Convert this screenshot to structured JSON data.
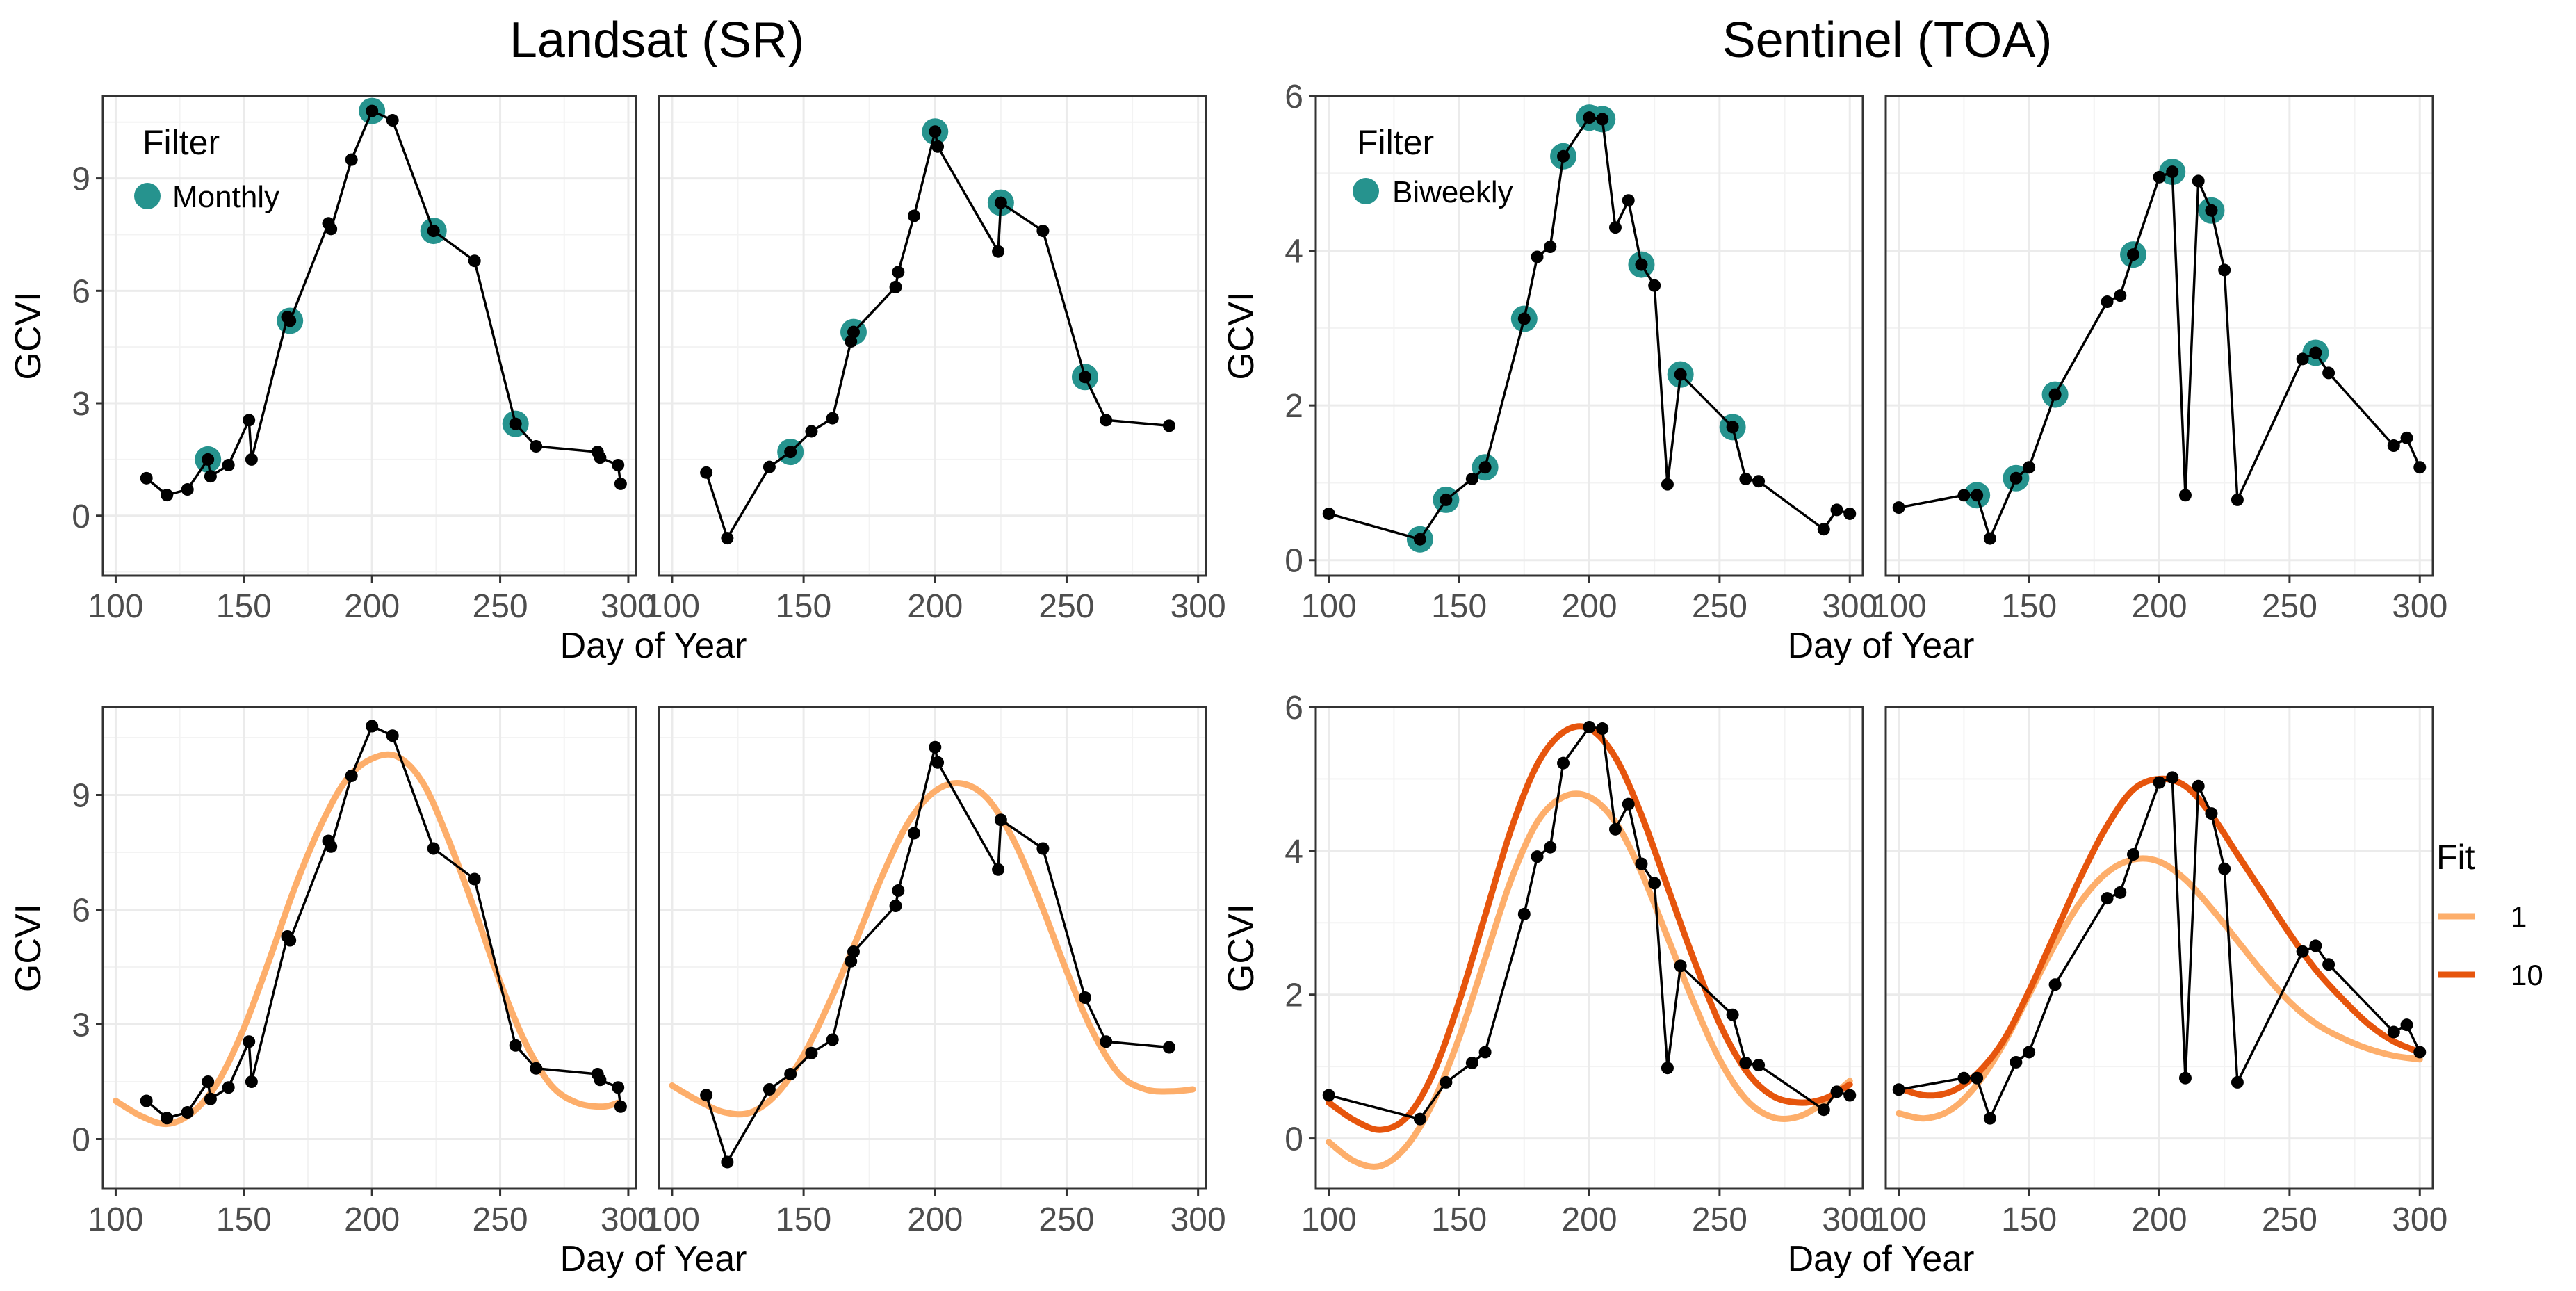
{
  "figure": {
    "group_titles": [
      "Landsat (SR)",
      "Sentinel (TOA)"
    ],
    "x_axis_label": "Day of Year",
    "y_axis_label": "GCVI"
  },
  "legends": {
    "filter_title": "Filter",
    "filter_landsat": "Monthly",
    "filter_sentinel": "Biweekly",
    "fit_title": "Fit",
    "fit_entries": [
      {
        "label": "1",
        "color": "#FDAE6B"
      },
      {
        "label": "10",
        "color": "#E6550D"
      }
    ]
  },
  "colors": {
    "series_line": "#000000",
    "filtered_point": "#26938E",
    "fit_1": "#FDAE6B",
    "fit_10": "#E6550D",
    "grid": "#EBEBEB"
  },
  "chart_data": [
    {
      "id": "landsat-a",
      "type": "line",
      "group": "Landsat (SR)",
      "xlim": [
        95,
        303
      ],
      "ylim": [
        -1.6,
        11.2
      ],
      "xticks": [
        100,
        150,
        200,
        250,
        300
      ],
      "yticks": [
        0,
        3,
        6,
        9
      ],
      "series": {
        "x": [
          112,
          120,
          128,
          136,
          137,
          144,
          152,
          153,
          167,
          168,
          183,
          184,
          192,
          200,
          208,
          224,
          240,
          256,
          264,
          288,
          289,
          296,
          297
        ],
        "y": [
          1.0,
          0.55,
          0.7,
          1.5,
          1.05,
          1.35,
          2.55,
          1.5,
          5.3,
          5.2,
          7.8,
          7.65,
          9.5,
          10.8,
          10.55,
          7.6,
          6.8,
          2.45,
          1.85,
          1.7,
          1.55,
          1.35,
          0.85
        ]
      },
      "filtered": {
        "x": [
          136,
          168,
          200,
          224,
          256
        ],
        "y": [
          1.5,
          5.2,
          10.8,
          7.6,
          2.45
        ]
      }
    },
    {
      "id": "landsat-b",
      "type": "line",
      "group": "Landsat (SR)",
      "xlim": [
        95,
        303
      ],
      "ylim": [
        -1.6,
        11.2
      ],
      "xticks": [
        100,
        150,
        200,
        250,
        300
      ],
      "yticks": [
        0,
        3,
        6,
        9
      ],
      "series": {
        "x": [
          113,
          121,
          137,
          145,
          153,
          161,
          168,
          169,
          185,
          186,
          192,
          200,
          201,
          224,
          225,
          241,
          257,
          265,
          289
        ],
        "y": [
          1.15,
          -0.6,
          1.3,
          1.7,
          2.25,
          2.6,
          4.65,
          4.9,
          6.1,
          6.5,
          8.0,
          10.25,
          9.85,
          7.05,
          8.35,
          7.6,
          3.7,
          2.55,
          2.4
        ]
      },
      "filtered": {
        "x": [
          145,
          169,
          200,
          225,
          257
        ],
        "y": [
          1.7,
          4.9,
          10.25,
          8.35,
          3.7
        ]
      }
    },
    {
      "id": "sentinel-a",
      "type": "line",
      "group": "Sentinel (TOA)",
      "xlim": [
        95,
        305
      ],
      "ylim": [
        -0.2,
        6.0
      ],
      "xticks": [
        100,
        150,
        200,
        250,
        300
      ],
      "yticks": [
        0,
        2,
        4,
        6
      ],
      "series": {
        "x": [
          100,
          135,
          145,
          155,
          160,
          175,
          180,
          185,
          190,
          200,
          205,
          210,
          215,
          220,
          225,
          230,
          235,
          255,
          260,
          265,
          290,
          295,
          300
        ],
        "y": [
          0.6,
          0.27,
          0.78,
          1.05,
          1.2,
          3.12,
          3.92,
          4.05,
          5.22,
          5.72,
          5.7,
          4.3,
          4.65,
          3.82,
          3.55,
          0.98,
          2.4,
          1.72,
          1.05,
          1.02,
          0.4,
          0.65,
          0.6
        ]
      },
      "filtered": {
        "x": [
          135,
          145,
          160,
          175,
          190,
          200,
          205,
          220,
          235,
          255
        ],
        "y": [
          0.27,
          0.78,
          1.2,
          3.12,
          5.22,
          5.72,
          5.7,
          3.82,
          2.4,
          1.72
        ]
      }
    },
    {
      "id": "sentinel-b",
      "type": "line",
      "group": "Sentinel (TOA)",
      "xlim": [
        95,
        305
      ],
      "ylim": [
        -0.2,
        6.0
      ],
      "xticks": [
        100,
        150,
        200,
        250,
        300
      ],
      "yticks": [
        0,
        2,
        4,
        6
      ],
      "series": {
        "x": [
          100,
          125,
          130,
          135,
          145,
          150,
          160,
          180,
          185,
          190,
          200,
          205,
          210,
          215,
          220,
          225,
          230,
          255,
          260,
          265,
          290,
          295,
          300
        ],
        "y": [
          0.68,
          0.84,
          0.84,
          0.28,
          1.06,
          1.2,
          2.14,
          3.34,
          3.42,
          3.95,
          4.95,
          5.02,
          0.84,
          4.9,
          4.52,
          3.75,
          0.78,
          2.6,
          2.68,
          2.42,
          1.48,
          1.58,
          1.2
        ]
      },
      "filtered": {
        "x": [
          130,
          145,
          160,
          190,
          205,
          220,
          260
        ],
        "y": [
          0.84,
          1.06,
          2.14,
          3.95,
          5.02,
          4.52,
          2.68
        ]
      }
    },
    {
      "id": "landsat-c",
      "type": "line",
      "group": "Landsat (SR)",
      "xlim": [
        95,
        303
      ],
      "ylim": [
        -1.3,
        11.3
      ],
      "xticks": [
        100,
        150,
        200,
        250,
        300
      ],
      "yticks": [
        0,
        3,
        6,
        9
      ],
      "series": {
        "x": [
          112,
          120,
          128,
          136,
          137,
          144,
          152,
          153,
          167,
          168,
          183,
          184,
          192,
          200,
          208,
          224,
          240,
          256,
          264,
          288,
          289,
          296,
          297
        ],
        "y": [
          1.0,
          0.55,
          0.7,
          1.5,
          1.05,
          1.35,
          2.55,
          1.5,
          5.3,
          5.2,
          7.8,
          7.65,
          9.5,
          10.8,
          10.55,
          7.6,
          6.8,
          2.45,
          1.85,
          1.7,
          1.55,
          1.35,
          0.85
        ]
      },
      "fits": [
        {
          "name": "1",
          "x": [
            100,
            110,
            120,
            130,
            140,
            150,
            160,
            170,
            180,
            190,
            200,
            210,
            220,
            230,
            240,
            250,
            260,
            270,
            280,
            290,
            296
          ],
          "y": [
            1.0,
            0.6,
            0.4,
            0.7,
            1.5,
            2.9,
            4.7,
            6.6,
            8.2,
            9.4,
            9.95,
            10.0,
            9.3,
            7.8,
            6.0,
            4.1,
            2.5,
            1.4,
            0.95,
            0.85,
            0.95
          ]
        }
      ]
    },
    {
      "id": "landsat-d",
      "type": "line",
      "group": "Landsat (SR)",
      "xlim": [
        95,
        303
      ],
      "ylim": [
        -1.3,
        11.3
      ],
      "xticks": [
        100,
        150,
        200,
        250,
        300
      ],
      "yticks": [
        0,
        3,
        6,
        9
      ],
      "series": {
        "x": [
          113,
          121,
          137,
          145,
          153,
          161,
          168,
          169,
          185,
          186,
          192,
          200,
          201,
          224,
          225,
          241,
          257,
          265,
          289
        ],
        "y": [
          1.15,
          -0.6,
          1.3,
          1.7,
          2.25,
          2.6,
          4.65,
          4.9,
          6.1,
          6.5,
          8.0,
          10.25,
          9.85,
          7.05,
          8.35,
          7.6,
          3.7,
          2.55,
          2.4
        ]
      },
      "fits": [
        {
          "name": "1",
          "x": [
            100,
            110,
            120,
            130,
            140,
            150,
            160,
            170,
            180,
            190,
            200,
            210,
            220,
            230,
            240,
            250,
            260,
            270,
            280,
            290,
            298
          ],
          "y": [
            1.4,
            1.0,
            0.7,
            0.7,
            1.2,
            2.2,
            3.6,
            5.2,
            6.9,
            8.3,
            9.1,
            9.3,
            8.9,
            7.8,
            6.2,
            4.4,
            2.8,
            1.7,
            1.3,
            1.25,
            1.3
          ]
        }
      ]
    },
    {
      "id": "sentinel-c",
      "type": "line",
      "group": "Sentinel (TOA)",
      "xlim": [
        95,
        305
      ],
      "ylim": [
        -0.7,
        6.0
      ],
      "xticks": [
        100,
        150,
        200,
        250,
        300
      ],
      "yticks": [
        0,
        2,
        4,
        6
      ],
      "series": {
        "x": [
          100,
          135,
          145,
          155,
          160,
          175,
          180,
          185,
          190,
          200,
          205,
          210,
          215,
          220,
          225,
          230,
          235,
          255,
          260,
          265,
          290,
          295,
          300
        ],
        "y": [
          0.6,
          0.27,
          0.78,
          1.05,
          1.2,
          3.12,
          3.92,
          4.05,
          5.22,
          5.72,
          5.7,
          4.3,
          4.65,
          3.82,
          3.55,
          0.98,
          2.4,
          1.72,
          1.05,
          1.02,
          0.4,
          0.65,
          0.6
        ]
      },
      "fits": [
        {
          "name": "1",
          "x": [
            100,
            110,
            120,
            130,
            140,
            150,
            160,
            170,
            180,
            190,
            200,
            210,
            220,
            230,
            240,
            250,
            260,
            270,
            280,
            290,
            300
          ],
          "y": [
            -0.05,
            -0.32,
            -0.38,
            -0.1,
            0.5,
            1.4,
            2.5,
            3.6,
            4.4,
            4.75,
            4.75,
            4.4,
            3.7,
            2.8,
            1.9,
            1.1,
            0.55,
            0.3,
            0.3,
            0.5,
            0.8
          ]
        },
        {
          "name": "10",
          "x": [
            100,
            110,
            120,
            130,
            140,
            150,
            160,
            170,
            180,
            190,
            200,
            210,
            220,
            230,
            240,
            250,
            260,
            270,
            280,
            290,
            300
          ],
          "y": [
            0.5,
            0.25,
            0.12,
            0.3,
            0.9,
            1.9,
            3.1,
            4.3,
            5.2,
            5.65,
            5.7,
            5.3,
            4.5,
            3.5,
            2.5,
            1.6,
            0.95,
            0.6,
            0.5,
            0.55,
            0.75
          ]
        }
      ]
    },
    {
      "id": "sentinel-d",
      "type": "line",
      "group": "Sentinel (TOA)",
      "xlim": [
        95,
        305
      ],
      "ylim": [
        -0.7,
        6.0
      ],
      "xticks": [
        100,
        150,
        200,
        250,
        300
      ],
      "yticks": [
        0,
        2,
        4,
        6
      ],
      "series": {
        "x": [
          100,
          125,
          130,
          135,
          145,
          150,
          160,
          180,
          185,
          190,
          200,
          205,
          210,
          215,
          220,
          225,
          230,
          255,
          260,
          265,
          290,
          295,
          300
        ],
        "y": [
          0.68,
          0.84,
          0.84,
          0.28,
          1.06,
          1.2,
          2.14,
          3.34,
          3.42,
          3.95,
          4.95,
          5.02,
          0.84,
          4.9,
          4.52,
          3.75,
          0.78,
          2.6,
          2.68,
          2.42,
          1.48,
          1.58,
          1.2
        ]
      },
      "fits": [
        {
          "name": "1",
          "x": [
            100,
            110,
            120,
            130,
            140,
            150,
            160,
            170,
            180,
            190,
            200,
            210,
            220,
            230,
            240,
            250,
            260,
            270,
            280,
            290,
            300
          ],
          "y": [
            0.35,
            0.28,
            0.4,
            0.75,
            1.3,
            2.0,
            2.7,
            3.3,
            3.7,
            3.88,
            3.85,
            3.6,
            3.2,
            2.75,
            2.3,
            1.9,
            1.6,
            1.4,
            1.25,
            1.15,
            1.1
          ]
        },
        {
          "name": "10",
          "x": [
            100,
            110,
            120,
            130,
            140,
            150,
            160,
            170,
            180,
            190,
            200,
            210,
            220,
            230,
            240,
            250,
            260,
            270,
            280,
            290,
            300
          ],
          "y": [
            0.7,
            0.6,
            0.65,
            0.9,
            1.35,
            2.05,
            2.85,
            3.65,
            4.35,
            4.85,
            5.0,
            4.9,
            4.5,
            3.95,
            3.4,
            2.85,
            2.35,
            1.95,
            1.6,
            1.35,
            1.2
          ]
        }
      ]
    }
  ]
}
